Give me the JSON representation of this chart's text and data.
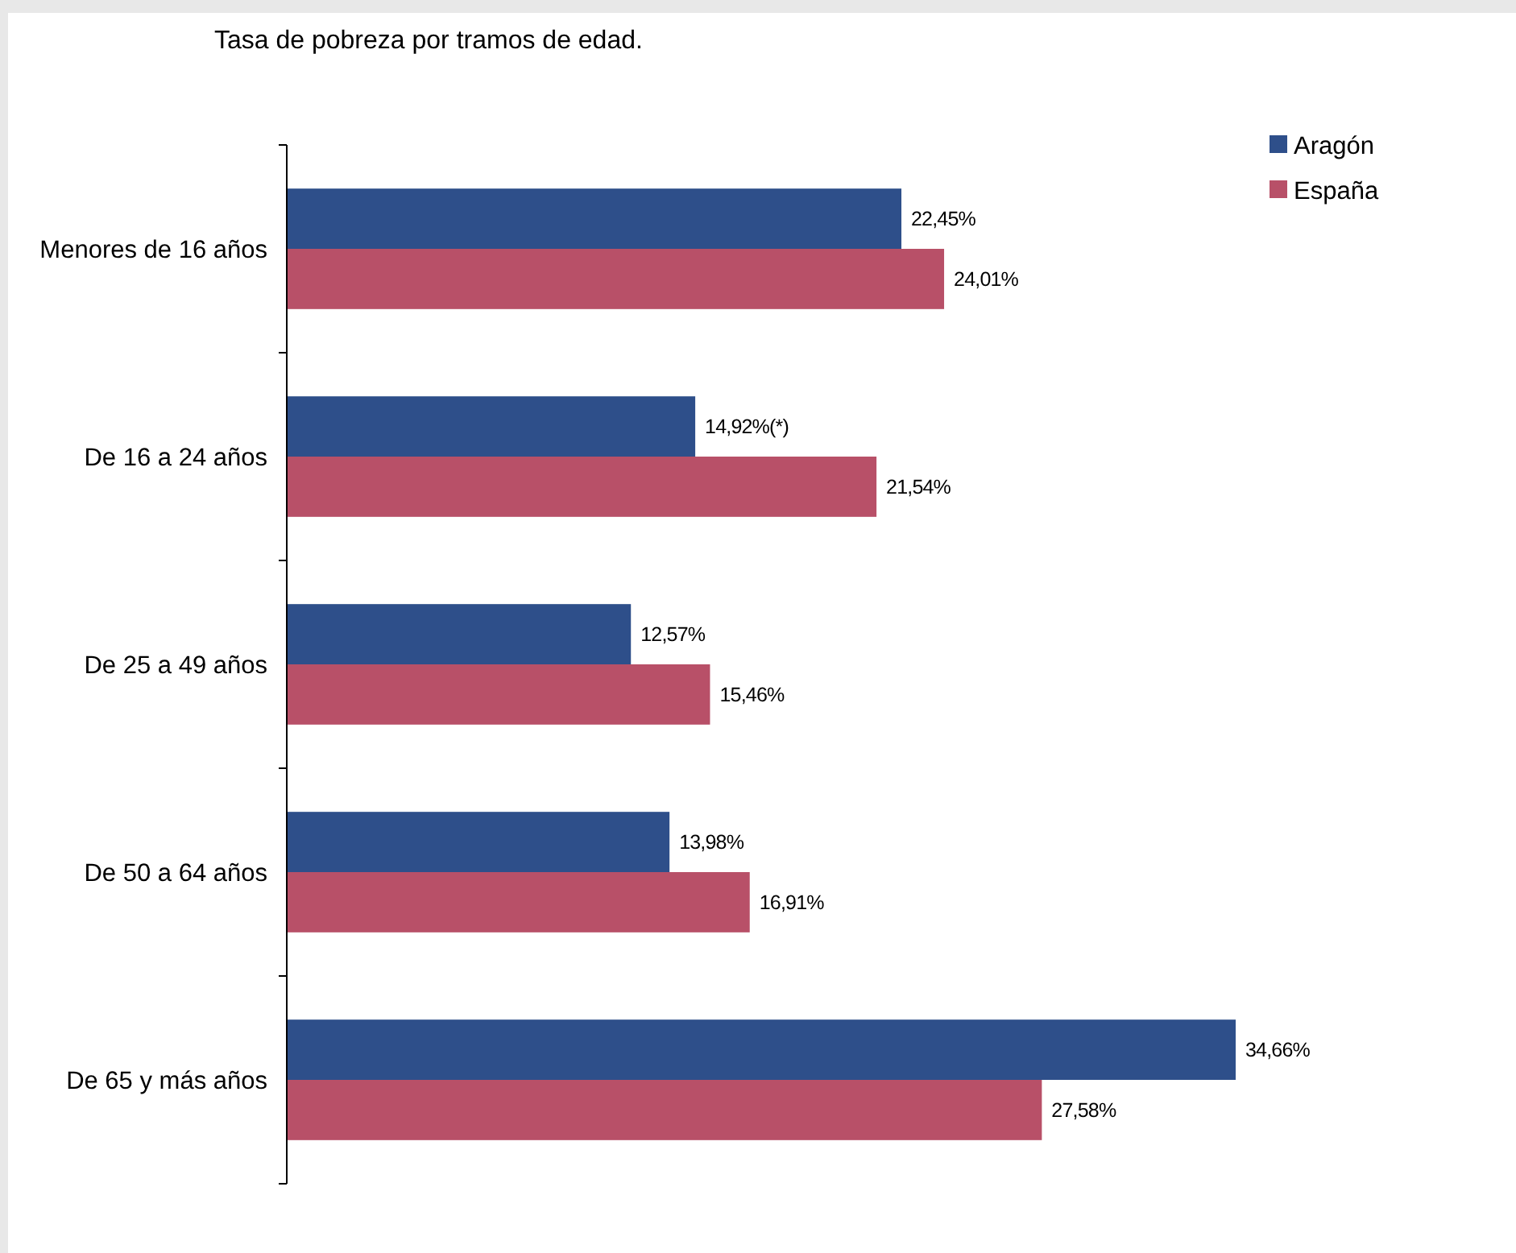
{
  "chart_data": {
    "type": "bar",
    "orientation": "horizontal",
    "title": "Tasa de pobreza por tramos de edad.",
    "categories": [
      "Menores de 16 años",
      "De 16 a 24 años",
      "De 25 a 49 años",
      "De 50 a 64 años",
      "De 65 y más años"
    ],
    "series": [
      {
        "name": "Aragón",
        "color": "#2e4f8a",
        "values": [
          22.45,
          14.92,
          12.57,
          13.98,
          34.66
        ],
        "value_labels": [
          "22,45%",
          "14,92%(*)",
          "12,57%",
          "13,98%",
          "34,66%"
        ]
      },
      {
        "name": "España",
        "color": "#b85068",
        "values": [
          24.01,
          21.54,
          15.46,
          16.91,
          27.58
        ],
        "value_labels": [
          "24,01%",
          "21,54%",
          "15,46%",
          "16,91%",
          "27,58%"
        ]
      }
    ],
    "legend": "top right"
  }
}
